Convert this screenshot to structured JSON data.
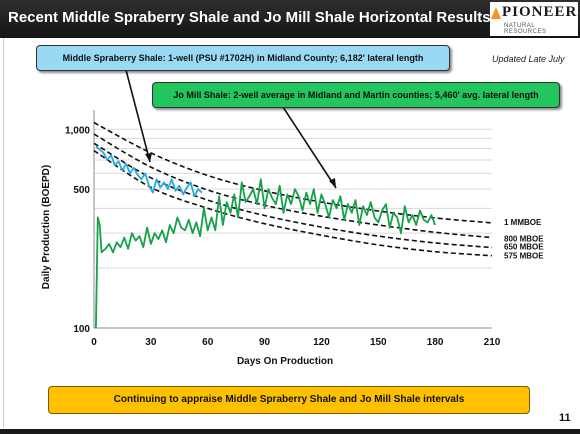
{
  "header": {
    "title": "Recent Middle Spraberry Shale and Jo Mill Shale Horizontal Results"
  },
  "logo": {
    "name": "PIONEER",
    "sub": "NATURAL RESOURCES"
  },
  "updated": "Updated Late July",
  "callouts": {
    "middle_spraberry": "Middle Spraberry Shale: 1-well (PSU #1702H) in Midland County; 6,182' lateral length",
    "jo_mill": "Jo Mill Shale: 2-well average in Midland and Martin counties; 5,460' avg. lateral length"
  },
  "bottom_text": "Continuing to appraise Middle Spraberry Shale and Jo Mill Shale intervals",
  "page_number": "11",
  "colors": {
    "header_bg": "#1e1e1e",
    "middle_spraberry": "#29a9e0",
    "jo_mill": "#17a14a",
    "callout_blue": "#99d9f3",
    "callout_green": "#22c55e",
    "bottom_box": "#ffc000"
  },
  "chart_data": {
    "type": "line",
    "xlabel": "Days On Production",
    "ylabel": "Daily Production (BOEPD)",
    "xlim": [
      0,
      210
    ],
    "ylim": [
      100,
      1250
    ],
    "y_scale": "log",
    "x_ticks": [
      0,
      30,
      60,
      90,
      120,
      150,
      180,
      210
    ],
    "x_tick_labels": [
      "0",
      "30",
      "60",
      "90",
      "120",
      "150",
      "180",
      "210"
    ],
    "y_ticks": [
      100,
      500,
      1000
    ],
    "y_tick_labels": [
      "100",
      "500",
      "1,000"
    ],
    "gridlines_y": [
      200,
      300,
      400,
      500,
      600,
      700,
      800,
      900,
      1000
    ],
    "grid": true,
    "type_curves": [
      {
        "name": "1 MMBOE",
        "x": [
          0,
          30,
          60,
          90,
          120,
          150,
          180,
          210
        ],
        "y": [
          1080,
          760,
          585,
          490,
          430,
          388,
          358,
          338
        ]
      },
      {
        "name": "800 MBOE",
        "x": [
          0,
          30,
          60,
          90,
          120,
          150,
          180,
          210
        ],
        "y": [
          945,
          645,
          495,
          415,
          365,
          330,
          303,
          285
        ]
      },
      {
        "name": "650 MBOE",
        "x": [
          0,
          30,
          60,
          90,
          120,
          150,
          180,
          210
        ],
        "y": [
          850,
          570,
          440,
          368,
          322,
          290,
          268,
          254
        ]
      },
      {
        "name": "575 MBOE",
        "x": [
          0,
          30,
          60,
          90,
          120,
          150,
          180,
          210
        ],
        "y": [
          780,
          510,
          400,
          335,
          293,
          262,
          242,
          231
        ]
      }
    ],
    "series": [
      {
        "name": "Middle Spraberry Shale",
        "x": [
          1,
          3,
          5,
          7,
          9,
          11,
          13,
          15,
          17,
          19,
          21,
          23,
          25,
          27,
          29,
          31,
          33,
          35,
          37,
          39,
          41,
          43,
          45,
          47,
          49,
          51,
          53,
          55,
          57
        ],
        "y": [
          820,
          790,
          760,
          700,
          740,
          660,
          690,
          620,
          670,
          600,
          640,
          590,
          560,
          600,
          520,
          480,
          560,
          510,
          540,
          500,
          560,
          490,
          520,
          470,
          510,
          540,
          460,
          500,
          480
        ]
      },
      {
        "name": "Jo Mill Shale",
        "x": [
          1,
          2,
          3,
          4,
          6,
          8,
          10,
          12,
          14,
          16,
          18,
          20,
          22,
          24,
          26,
          28,
          30,
          32,
          34,
          36,
          38,
          40,
          42,
          44,
          46,
          48,
          50,
          52,
          54,
          56,
          58,
          60,
          62,
          64,
          66,
          68,
          70,
          72,
          74,
          76,
          78,
          80,
          82,
          84,
          86,
          88,
          90,
          92,
          94,
          96,
          98,
          100,
          102,
          104,
          106,
          108,
          110,
          112,
          114,
          116,
          118,
          120,
          122,
          124,
          126,
          128,
          130,
          132,
          134,
          136,
          138,
          140,
          142,
          144,
          146,
          148,
          150,
          152,
          154,
          156,
          158,
          160,
          162,
          164,
          166,
          168,
          170,
          172,
          174,
          176,
          178,
          180
        ],
        "y": [
          100,
          360,
          330,
          240,
          250,
          265,
          240,
          270,
          255,
          285,
          250,
          300,
          275,
          290,
          255,
          320,
          265,
          300,
          280,
          310,
          270,
          330,
          300,
          360,
          320,
          310,
          350,
          300,
          340,
          290,
          400,
          310,
          360,
          310,
          460,
          330,
          430,
          380,
          470,
          360,
          540,
          430,
          460,
          500,
          420,
          560,
          400,
          500,
          450,
          420,
          520,
          380,
          470,
          420,
          500,
          460,
          390,
          480,
          420,
          500,
          380,
          470,
          420,
          360,
          440,
          400,
          460,
          350,
          420,
          380,
          440,
          330,
          410,
          370,
          430,
          360,
          340,
          390,
          420,
          320,
          380,
          360,
          300,
          410,
          340,
          370,
          330,
          390,
          350,
          340,
          370,
          330
        ]
      }
    ]
  }
}
